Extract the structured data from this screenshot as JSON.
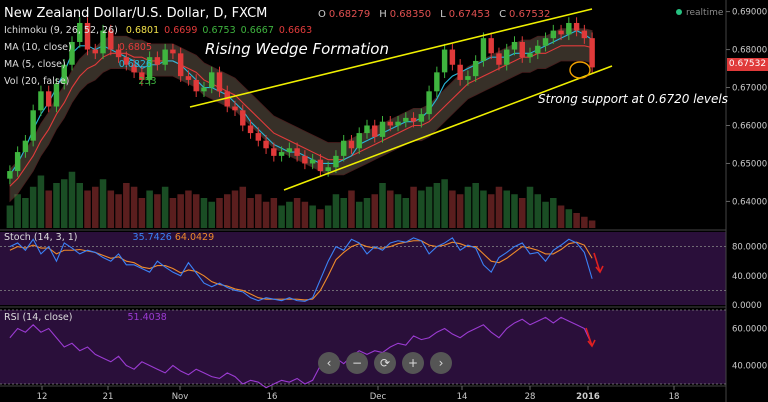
{
  "header": {
    "symbol": "New Zealand Dollar/U.S. Dollar, D, FXCM",
    "ohlc": [
      {
        "k": "O",
        "v": "0.68279"
      },
      {
        "k": "H",
        "v": "0.68350"
      },
      {
        "k": "L",
        "v": "0.67453"
      },
      {
        "k": "C",
        "v": "0.67532"
      }
    ],
    "realtime": "realtime"
  },
  "indicators": {
    "ichimoku": {
      "label": "Ichimoku (9, 26, 52, 26)",
      "values": [
        "0.6801",
        "0.6699",
        "0.6753",
        "0.6667",
        "0.6663"
      ]
    },
    "ma10": {
      "label": "MA (10, close)",
      "value": "0.6805"
    },
    "ma5": {
      "label": "MA (5, close)",
      "value": "0.6826"
    },
    "vol": {
      "label": "Vol (20, false)",
      "value": "253"
    },
    "stoch": {
      "label": "Stoch (14, 3, 1)",
      "k": "35.7426",
      "d": "64.0429"
    },
    "rsi": {
      "label": "RSI (14, close)",
      "value": "51.4038"
    }
  },
  "annotations": {
    "pattern": "Rising Wedge Formation",
    "support": "Strong support at 0.6720 levels"
  },
  "price_badge": "0.67532",
  "nav_buttons": [
    "‹",
    "−",
    "⟳",
    "+",
    "›"
  ],
  "colors": {
    "bull": "#3fb43f",
    "bear": "#e03a3a",
    "wedge": "#f0f000",
    "ma5": "#29b6d8",
    "ma10": "#e23b3b",
    "stoch_k": "#3b82f6",
    "stoch_d": "#ee8a2b",
    "rsi": "#9b3bd2",
    "cloud": "#7a6a5a"
  },
  "chart_data": {
    "type": "candlestick",
    "x_tick_labels": [
      "12",
      "21",
      "Nov",
      "16",
      "Dec",
      "14",
      "28",
      "2016",
      "18"
    ],
    "price_ticks": [
      "0.69000",
      "0.68000",
      "0.67000",
      "0.66000",
      "0.65000",
      "0.64000"
    ],
    "stoch_ticks": [
      "80.0000",
      "40.0000",
      "0.0000"
    ],
    "rsi_ticks": [
      "60.0000",
      "40.0000"
    ],
    "price_range": [
      0.633,
      0.692
    ],
    "series": [
      {
        "name": "NZD/USD",
        "close": [
          0.648,
          0.653,
          0.656,
          0.664,
          0.669,
          0.665,
          0.671,
          0.676,
          0.682,
          0.687,
          0.68,
          0.679,
          0.685,
          0.68,
          0.678,
          0.676,
          0.674,
          0.672,
          0.678,
          0.676,
          0.68,
          0.679,
          0.673,
          0.672,
          0.669,
          0.67,
          0.674,
          0.669,
          0.665,
          0.664,
          0.66,
          0.658,
          0.656,
          0.654,
          0.652,
          0.653,
          0.654,
          0.652,
          0.65,
          0.651,
          0.648,
          0.649,
          0.652,
          0.656,
          0.654,
          0.658,
          0.66,
          0.657,
          0.661,
          0.66,
          0.661,
          0.662,
          0.661,
          0.663,
          0.669,
          0.674,
          0.68,
          0.676,
          0.672,
          0.673,
          0.677,
          0.683,
          0.679,
          0.676,
          0.68,
          0.682,
          0.678,
          0.679,
          0.681,
          0.683,
          0.685,
          0.684,
          0.687,
          0.685,
          0.683,
          0.6753
        ]
      }
    ],
    "overlays": {
      "ma5": [
        0.647,
        0.65,
        0.654,
        0.659,
        0.663,
        0.666,
        0.67,
        0.674,
        0.679,
        0.681,
        0.681,
        0.68,
        0.681,
        0.68,
        0.679,
        0.678,
        0.677,
        0.675,
        0.676,
        0.676,
        0.677,
        0.677,
        0.676,
        0.674,
        0.672,
        0.67,
        0.67,
        0.669,
        0.668,
        0.666,
        0.664,
        0.661,
        0.659,
        0.657,
        0.655,
        0.654,
        0.653,
        0.653,
        0.652,
        0.651,
        0.65,
        0.65,
        0.65,
        0.651,
        0.652,
        0.655,
        0.656,
        0.657,
        0.658,
        0.659,
        0.66,
        0.661,
        0.661,
        0.662,
        0.664,
        0.667,
        0.671,
        0.673,
        0.674,
        0.675,
        0.676,
        0.677,
        0.678,
        0.678,
        0.678,
        0.679,
        0.679,
        0.679,
        0.68,
        0.681,
        0.682,
        0.683,
        0.684,
        0.685,
        0.684,
        0.6826
      ],
      "ma10": [
        0.644,
        0.646,
        0.649,
        0.652,
        0.656,
        0.659,
        0.663,
        0.666,
        0.67,
        0.673,
        0.675,
        0.676,
        0.678,
        0.679,
        0.679,
        0.679,
        0.678,
        0.678,
        0.677,
        0.677,
        0.677,
        0.677,
        0.676,
        0.675,
        0.674,
        0.672,
        0.671,
        0.67,
        0.669,
        0.668,
        0.666,
        0.664,
        0.662,
        0.66,
        0.658,
        0.657,
        0.656,
        0.655,
        0.654,
        0.653,
        0.652,
        0.651,
        0.651,
        0.651,
        0.652,
        0.653,
        0.654,
        0.655,
        0.656,
        0.657,
        0.658,
        0.659,
        0.66,
        0.66,
        0.661,
        0.663,
        0.665,
        0.667,
        0.669,
        0.671,
        0.672,
        0.673,
        0.674,
        0.675,
        0.676,
        0.677,
        0.678,
        0.678,
        0.679,
        0.679,
        0.68,
        0.681,
        0.681,
        0.681,
        0.681,
        0.6805
      ]
    },
    "volume": [
      30,
      45,
      40,
      55,
      70,
      50,
      60,
      65,
      75,
      60,
      50,
      55,
      65,
      50,
      45,
      60,
      55,
      40,
      50,
      45,
      55,
      40,
      45,
      50,
      45,
      40,
      35,
      40,
      45,
      50,
      55,
      40,
      45,
      35,
      40,
      30,
      35,
      40,
      35,
      30,
      25,
      30,
      45,
      40,
      50,
      35,
      40,
      45,
      60,
      50,
      45,
      40,
      55,
      50,
      55,
      60,
      65,
      50,
      45,
      55,
      60,
      50,
      45,
      55,
      50,
      45,
      40,
      55,
      45,
      35,
      40,
      30,
      25,
      20,
      15,
      10
    ],
    "stoch_k": [
      80,
      85,
      75,
      90,
      70,
      80,
      60,
      85,
      78,
      70,
      75,
      72,
      65,
      60,
      70,
      55,
      55,
      50,
      45,
      60,
      52,
      45,
      40,
      58,
      44,
      30,
      25,
      30,
      24,
      20,
      18,
      10,
      6,
      10,
      8,
      6,
      10,
      6,
      5,
      10,
      35,
      60,
      80,
      75,
      90,
      85,
      70,
      80,
      75,
      85,
      88,
      86,
      92,
      88,
      70,
      80,
      85,
      92,
      75,
      82,
      78,
      55,
      45,
      65,
      72,
      80,
      85,
      70,
      72,
      60,
      75,
      82,
      90,
      85,
      72,
      36
    ],
    "stoch_d": [
      75,
      80,
      78,
      82,
      78,
      78,
      70,
      75,
      75,
      76,
      74,
      72,
      68,
      64,
      66,
      60,
      58,
      52,
      50,
      54,
      54,
      50,
      44,
      48,
      46,
      40,
      32,
      28,
      26,
      22,
      20,
      15,
      10,
      8,
      8,
      8,
      8,
      8,
      7,
      8,
      20,
      40,
      62,
      72,
      80,
      84,
      80,
      78,
      78,
      80,
      84,
      86,
      88,
      88,
      82,
      80,
      82,
      86,
      84,
      80,
      80,
      70,
      60,
      58,
      64,
      72,
      80,
      78,
      75,
      70,
      70,
      76,
      84,
      86,
      82,
      64
    ],
    "rsi": [
      55,
      60,
      58,
      62,
      58,
      60,
      55,
      50,
      52,
      48,
      50,
      46,
      44,
      42,
      45,
      40,
      38,
      42,
      40,
      38,
      36,
      40,
      37,
      35,
      38,
      36,
      34,
      33,
      36,
      34,
      30,
      32,
      31,
      28,
      30,
      32,
      31,
      33,
      30,
      32,
      40,
      42,
      44,
      41,
      45,
      48,
      46,
      48,
      47,
      50,
      52,
      51,
      56,
      54,
      55,
      58,
      60,
      57,
      55,
      58,
      60,
      62,
      58,
      55,
      60,
      63,
      65,
      62,
      64,
      66,
      63,
      66,
      64,
      62,
      60,
      51
    ]
  }
}
